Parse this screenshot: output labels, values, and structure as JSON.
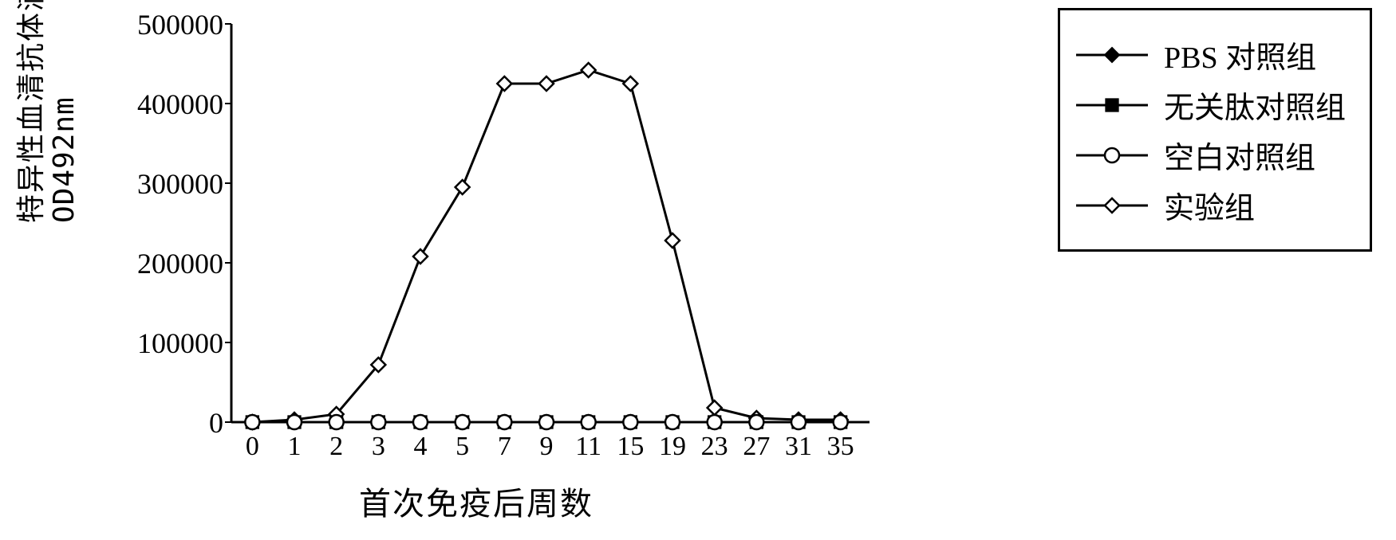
{
  "chart": {
    "type": "line",
    "y_axis_label": "特异性血清抗体滴度",
    "y_axis_sublabel": "OD492nm",
    "x_axis_label": "首次免疫后周数",
    "x_categories": [
      "0",
      "1",
      "2",
      "3",
      "4",
      "5",
      "7",
      "9",
      "11",
      "15",
      "19",
      "23",
      "27",
      "31",
      "35"
    ],
    "y_ticks": [
      0,
      100000,
      200000,
      300000,
      400000,
      500000
    ],
    "ylim": [
      0,
      500000
    ],
    "background_color": "#ffffff",
    "axis_color": "#000000",
    "line_width": 3,
    "marker_size": 9,
    "tick_fontsize": 34,
    "label_fontsize": 40,
    "legend_fontsize": 38,
    "series": [
      {
        "name": "PBS 对照组",
        "marker": "diamond-filled",
        "color": "#000000",
        "data": [
          0,
          0,
          0,
          0,
          0,
          0,
          0,
          0,
          0,
          0,
          0,
          0,
          0,
          0,
          0
        ]
      },
      {
        "name": "无关肽对照组",
        "marker": "square-filled",
        "color": "#000000",
        "data": [
          0,
          0,
          0,
          0,
          0,
          0,
          0,
          0,
          0,
          0,
          0,
          0,
          0,
          0,
          0
        ]
      },
      {
        "name": "空白对照组",
        "marker": "circle-open",
        "color": "#000000",
        "data": [
          0,
          0,
          0,
          0,
          0,
          0,
          0,
          0,
          0,
          0,
          0,
          0,
          0,
          0,
          0
        ]
      },
      {
        "name": "实验组",
        "marker": "diamond-open",
        "color": "#000000",
        "data": [
          0,
          3000,
          10000,
          72000,
          208000,
          295000,
          425000,
          425000,
          442000,
          425000,
          228000,
          18000,
          5000,
          3000,
          3000
        ]
      }
    ]
  },
  "legend": {
    "items": [
      {
        "label": "PBS 对照组",
        "marker": "diamond-filled"
      },
      {
        "label": "无关肽对照组",
        "marker": "square-filled"
      },
      {
        "label": "空白对照组",
        "marker": "circle-open"
      },
      {
        "label": "实验组",
        "marker": "diamond-open"
      }
    ]
  }
}
